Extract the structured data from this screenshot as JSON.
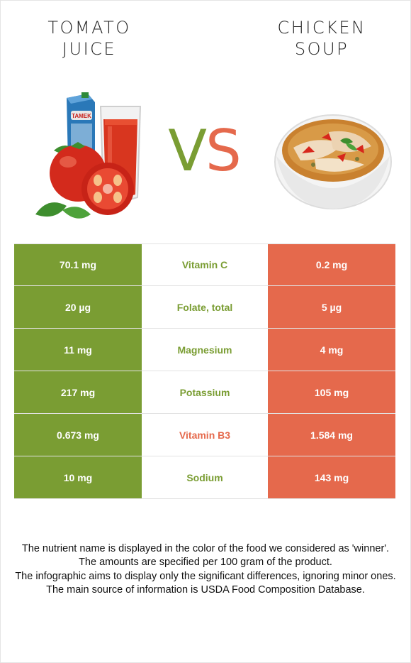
{
  "left_food": {
    "name": "TOMATO\nJUICE",
    "box_brand": "TAMEK",
    "color": "#7a9d33"
  },
  "right_food": {
    "name": "CHICKEN\nSOUP",
    "color": "#e5694c"
  },
  "vs": {
    "v": "V",
    "s": "S"
  },
  "rows": [
    {
      "left": "70.1 mg",
      "nutrient": "Vitamin C",
      "right": "0.2 mg",
      "winner": "left"
    },
    {
      "left": "20 µg",
      "nutrient": "Folate, total",
      "right": "5 µg",
      "winner": "left"
    },
    {
      "left": "11 mg",
      "nutrient": "Magnesium",
      "right": "4 mg",
      "winner": "left"
    },
    {
      "left": "217 mg",
      "nutrient": "Potassium",
      "right": "105 mg",
      "winner": "left"
    },
    {
      "left": "0.673 mg",
      "nutrient": "Vitamin B3",
      "right": "1.584 mg",
      "winner": "right"
    },
    {
      "left": "10 mg",
      "nutrient": "Sodium",
      "right": "143 mg",
      "winner": "left"
    }
  ],
  "footnotes": [
    "The nutrient name is displayed in the color of the food we considered as 'winner'.",
    "The amounts are specified per 100 gram of the product.",
    "The infographic aims to display only the significant differences, ignoring minor ones.",
    "The main source of information is USDA Food Composition Database."
  ]
}
